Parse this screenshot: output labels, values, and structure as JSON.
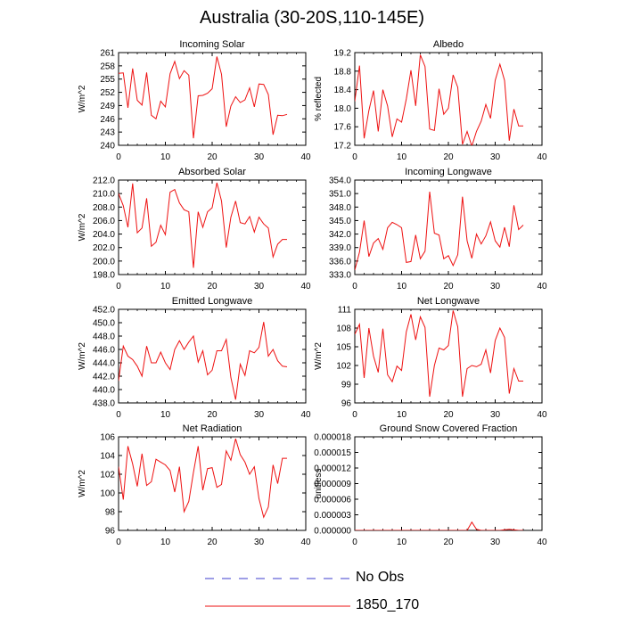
{
  "title": "Australia (30-20S,110-145E)",
  "legend": {
    "entries": [
      {
        "label": "No Obs",
        "color": "#3d3dcc",
        "style": "dashed"
      },
      {
        "label": "1850_170",
        "color": "#ee1111",
        "style": "solid"
      }
    ]
  },
  "colors": {
    "series": "#ee1111",
    "axis": "#000000"
  },
  "chart_data": [
    {
      "type": "line",
      "title": "Incoming Solar",
      "ylabel": "W/m^2",
      "xlim": [
        0,
        40
      ],
      "ylim": [
        240,
        261
      ],
      "xticks": [
        0,
        10,
        20,
        30,
        40
      ],
      "yticks": [
        240,
        243,
        246,
        249,
        252,
        255,
        258,
        261
      ],
      "ytick_labels": [
        "240",
        "243",
        "246",
        "249",
        "252",
        "255",
        "258",
        "261"
      ],
      "grid": false,
      "series": [
        {
          "name": "1850_170",
          "x": [
            0,
            1,
            2,
            3,
            4,
            5,
            6,
            7,
            8,
            9,
            10,
            11,
            12,
            13,
            14,
            15,
            16,
            17,
            18,
            19,
            20,
            21,
            22,
            23,
            24,
            25,
            26,
            27,
            28,
            29,
            30,
            31,
            32,
            33,
            34,
            35,
            36
          ],
          "values": [
            256.3,
            256.4,
            248.5,
            257.4,
            250.2,
            249.1,
            256.5,
            246.8,
            246.0,
            250.0,
            248.7,
            256.2,
            259.0,
            255.1,
            256.9,
            255.9,
            241.6,
            251.2,
            251.3,
            251.8,
            252.8,
            260.1,
            256.1,
            244.2,
            248.9,
            251.0,
            249.7,
            250.3,
            253.0,
            248.7,
            253.9,
            253.8,
            251.5,
            242.4,
            246.8,
            246.7,
            247.0
          ]
        }
      ]
    },
    {
      "type": "line",
      "title": "Albedo",
      "ylabel": "% reflected",
      "xlim": [
        0,
        40
      ],
      "ylim": [
        17.2,
        19.2
      ],
      "xticks": [
        0,
        10,
        20,
        30,
        40
      ],
      "yticks": [
        17.2,
        17.6,
        18.0,
        18.4,
        18.8,
        19.2
      ],
      "ytick_labels": [
        "17.2",
        "17.6",
        "18.0",
        "18.4",
        "18.8",
        "19.2"
      ],
      "grid": false,
      "series": [
        {
          "name": "1850_170",
          "x": [
            0,
            1,
            2,
            3,
            4,
            5,
            6,
            7,
            8,
            9,
            10,
            11,
            12,
            13,
            14,
            15,
            16,
            17,
            18,
            19,
            20,
            21,
            22,
            23,
            24,
            25,
            26,
            27,
            28,
            29,
            30,
            31,
            32,
            33,
            34,
            35,
            36
          ],
          "values": [
            18.15,
            18.92,
            17.35,
            17.95,
            18.38,
            17.5,
            18.4,
            18.05,
            17.38,
            17.77,
            17.7,
            18.2,
            18.82,
            18.05,
            19.15,
            18.9,
            17.55,
            17.52,
            18.42,
            17.87,
            18.0,
            18.72,
            18.45,
            17.22,
            17.5,
            17.18,
            17.5,
            17.72,
            18.08,
            17.78,
            18.6,
            18.95,
            18.6,
            17.3,
            17.98,
            17.62,
            17.62
          ]
        }
      ]
    },
    {
      "type": "line",
      "title": "Absorbed Solar",
      "ylabel": "W/m^2",
      "xlim": [
        0,
        40
      ],
      "ylim": [
        198,
        212
      ],
      "xticks": [
        0,
        10,
        20,
        30,
        40
      ],
      "yticks": [
        198,
        200,
        202,
        204,
        206,
        208,
        210,
        212
      ],
      "ytick_labels": [
        "198.0",
        "200.0",
        "202.0",
        "204.0",
        "206.0",
        "208.0",
        "210.0",
        "212.0"
      ],
      "grid": false,
      "series": [
        {
          "name": "1850_170",
          "x": [
            0,
            1,
            2,
            3,
            4,
            5,
            6,
            7,
            8,
            9,
            10,
            11,
            12,
            13,
            14,
            15,
            16,
            17,
            18,
            19,
            20,
            21,
            22,
            23,
            24,
            25,
            26,
            27,
            28,
            29,
            30,
            31,
            32,
            33,
            34,
            35,
            36
          ],
          "values": [
            210.0,
            208.2,
            205.0,
            211.5,
            204.2,
            204.9,
            209.3,
            202.2,
            202.8,
            205.3,
            203.9,
            210.2,
            210.6,
            208.6,
            207.6,
            207.3,
            199.0,
            207.3,
            205.0,
            207.3,
            207.9,
            211.6,
            208.9,
            202.0,
            206.5,
            208.9,
            205.7,
            205.5,
            206.6,
            204.3,
            206.5,
            205.5,
            204.9,
            200.6,
            202.5,
            203.2,
            203.2
          ]
        }
      ]
    },
    {
      "type": "line",
      "title": "Incoming Longwave",
      "ylabel": "",
      "xlim": [
        0,
        40
      ],
      "ylim": [
        333,
        354
      ],
      "xticks": [
        0,
        10,
        20,
        30,
        40
      ],
      "yticks": [
        333,
        336,
        339,
        342,
        345,
        348,
        351,
        354
      ],
      "ytick_labels": [
        "333.0",
        "336.0",
        "339.0",
        "342.0",
        "345.0",
        "348.0",
        "351.0",
        "354.0"
      ],
      "grid": false,
      "series": [
        {
          "name": "1850_170",
          "x": [
            0,
            1,
            2,
            3,
            4,
            5,
            6,
            7,
            8,
            9,
            10,
            11,
            12,
            13,
            14,
            15,
            16,
            17,
            18,
            19,
            20,
            21,
            22,
            23,
            24,
            25,
            26,
            27,
            28,
            29,
            30,
            31,
            32,
            33,
            34,
            35,
            36
          ],
          "values": [
            334.0,
            338.0,
            345.0,
            337.0,
            340.0,
            341.0,
            338.6,
            343.4,
            344.6,
            344.1,
            343.4,
            335.7,
            335.9,
            341.8,
            336.5,
            338.2,
            351.4,
            342.2,
            341.8,
            336.5,
            337.2,
            335.0,
            337.4,
            350.3,
            340.5,
            336.6,
            342.0,
            339.8,
            341.6,
            344.7,
            340.5,
            339.1,
            343.5,
            339.2,
            348.4,
            343.0,
            344.0
          ]
        }
      ]
    },
    {
      "type": "line",
      "title": "Emitted Longwave",
      "ylabel": "W/m^2",
      "xlim": [
        0,
        40
      ],
      "ylim": [
        438,
        452
      ],
      "xticks": [
        0,
        10,
        20,
        30,
        40
      ],
      "yticks": [
        438,
        440,
        442,
        444,
        446,
        448,
        450,
        452
      ],
      "ytick_labels": [
        "438.0",
        "440.0",
        "442.0",
        "444.0",
        "446.0",
        "448.0",
        "450.0",
        "452.0"
      ],
      "grid": false,
      "series": [
        {
          "name": "1850_170",
          "x": [
            0,
            1,
            2,
            3,
            4,
            5,
            6,
            7,
            8,
            9,
            10,
            11,
            12,
            13,
            14,
            15,
            16,
            17,
            18,
            19,
            20,
            21,
            22,
            23,
            24,
            25,
            26,
            27,
            28,
            29,
            30,
            31,
            32,
            33,
            34,
            35,
            36
          ],
          "values": [
            441.3,
            446.5,
            445.0,
            444.5,
            443.5,
            442.0,
            446.5,
            444.0,
            444.0,
            445.6,
            444.0,
            443.0,
            446.0,
            447.3,
            446.0,
            447.1,
            448.0,
            444.1,
            445.8,
            442.2,
            442.9,
            445.8,
            445.8,
            447.5,
            441.8,
            438.5,
            443.8,
            442.1,
            445.8,
            445.5,
            446.3,
            450.1,
            445.0,
            446.0,
            444.3,
            443.5,
            443.4
          ]
        }
      ]
    },
    {
      "type": "line",
      "title": "Net Longwave",
      "ylabel": "W/m^2",
      "xlim": [
        0,
        40
      ],
      "ylim": [
        96,
        111
      ],
      "xticks": [
        0,
        10,
        20,
        30,
        40
      ],
      "yticks": [
        96,
        99,
        102,
        105,
        108,
        111
      ],
      "ytick_labels": [
        "96",
        "99",
        "102",
        "105",
        "108",
        "111"
      ],
      "grid": false,
      "series": [
        {
          "name": "1850_170",
          "x": [
            0,
            1,
            2,
            3,
            4,
            5,
            6,
            7,
            8,
            9,
            10,
            11,
            12,
            13,
            14,
            15,
            16,
            17,
            18,
            19,
            20,
            21,
            22,
            23,
            24,
            25,
            26,
            27,
            28,
            29,
            30,
            31,
            32,
            33,
            34,
            35,
            36
          ],
          "values": [
            107.0,
            108.6,
            100.0,
            108.0,
            103.5,
            100.9,
            107.9,
            100.5,
            99.4,
            101.9,
            101.2,
            107.4,
            110.2,
            106.1,
            109.8,
            108.1,
            97.0,
            102.0,
            104.8,
            104.5,
            105.2,
            110.8,
            108.2,
            97.0,
            101.5,
            102.0,
            101.8,
            102.2,
            104.5,
            100.8,
            106.0,
            108.0,
            106.5,
            97.5,
            101.5,
            99.5,
            99.5
          ]
        }
      ]
    },
    {
      "type": "line",
      "title": "Net Radiation",
      "ylabel": "W/m^2",
      "xlim": [
        0,
        40
      ],
      "ylim": [
        96,
        106
      ],
      "xticks": [
        0,
        10,
        20,
        30,
        40
      ],
      "yticks": [
        96,
        98,
        100,
        102,
        104,
        106
      ],
      "ytick_labels": [
        "96",
        "98",
        "100",
        "102",
        "104",
        "106"
      ],
      "grid": false,
      "series": [
        {
          "name": "1850_170",
          "x": [
            0,
            1,
            2,
            3,
            4,
            5,
            6,
            7,
            8,
            9,
            10,
            11,
            12,
            13,
            14,
            15,
            16,
            17,
            18,
            19,
            20,
            21,
            22,
            23,
            24,
            25,
            26,
            27,
            28,
            29,
            30,
            31,
            32,
            33,
            34,
            35,
            36
          ],
          "values": [
            102.8,
            99.3,
            105.0,
            103.1,
            100.7,
            104.2,
            100.8,
            101.2,
            103.6,
            103.3,
            103.0,
            102.4,
            100.1,
            102.8,
            98.0,
            99.1,
            102.2,
            105.0,
            100.3,
            102.6,
            102.7,
            100.6,
            100.9,
            104.5,
            103.5,
            105.8,
            104.1,
            103.3,
            102.0,
            102.8,
            99.4,
            97.4,
            98.5,
            103.0,
            101.0,
            103.7,
            103.7
          ]
        }
      ]
    },
    {
      "type": "line",
      "title": "Ground Snow Covered Fraction",
      "ylabel": "unitless",
      "xlim": [
        0,
        40
      ],
      "ylim": [
        0,
        1.8e-05
      ],
      "xticks": [
        0,
        10,
        20,
        30,
        40
      ],
      "yticks": [
        0,
        3e-06,
        6e-06,
        9e-06,
        1.2e-05,
        1.5e-05,
        1.8e-05
      ],
      "ytick_labels": [
        "0.000000",
        "0.000003",
        "0.000006",
        "0.000009",
        "0.000012",
        "0.000015",
        "0.000018"
      ],
      "grid": false,
      "series": [
        {
          "name": "1850_170",
          "x": [
            0,
            1,
            2,
            3,
            4,
            5,
            6,
            7,
            8,
            9,
            10,
            11,
            12,
            13,
            14,
            15,
            16,
            17,
            18,
            19,
            20,
            21,
            22,
            23,
            24,
            25,
            26,
            27,
            28,
            29,
            30,
            31,
            32,
            33,
            34,
            35,
            36
          ],
          "values": [
            0,
            0,
            0,
            0,
            0,
            0,
            0,
            0,
            0,
            0,
            0,
            0,
            0,
            0,
            0,
            0,
            0,
            0,
            0,
            0,
            0,
            0,
            0,
            0,
            0,
            1.6e-06,
            2e-07,
            0,
            0,
            0,
            0,
            0,
            1e-07,
            2e-07,
            1e-07,
            0,
            0
          ]
        }
      ]
    }
  ]
}
